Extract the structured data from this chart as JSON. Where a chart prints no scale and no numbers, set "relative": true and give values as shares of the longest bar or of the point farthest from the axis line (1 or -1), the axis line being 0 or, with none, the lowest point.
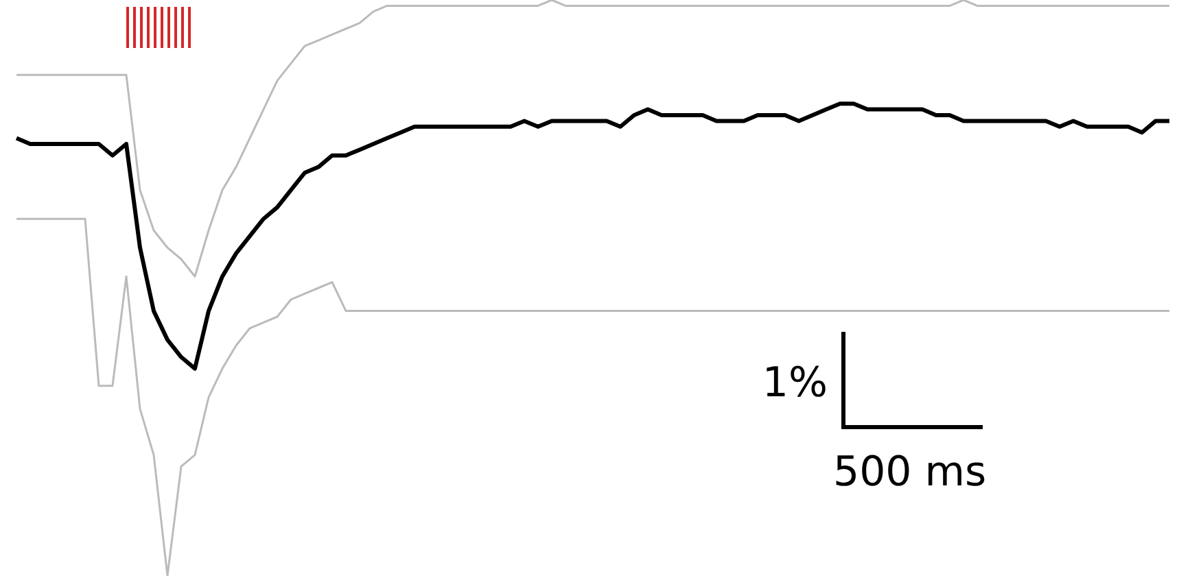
{
  "chart_data": {
    "type": "line",
    "relative": true,
    "categories": [
      null,
      null,
      null,
      null,
      null,
      null,
      null,
      null,
      null,
      null,
      null,
      null,
      null,
      null,
      null,
      null,
      null,
      null,
      null,
      null,
      null,
      null,
      null,
      null,
      null,
      null,
      null,
      null,
      null,
      null,
      null,
      null,
      null,
      null,
      null,
      null,
      null,
      null,
      null,
      null,
      null,
      null,
      null,
      null,
      null,
      null,
      null,
      null,
      null,
      null,
      null,
      null,
      null,
      null,
      null,
      null,
      null,
      null,
      null,
      null,
      null,
      null,
      null,
      null,
      null,
      null,
      null,
      null,
      null,
      null,
      null,
      null,
      null,
      null,
      null,
      null,
      null,
      null,
      null,
      null,
      null,
      null,
      null,
      null,
      null
    ],
    "series": [
      {
        "color": "#bbbbbb",
        "values": [
          0.87,
          0.87,
          0.87,
          0.87,
          0.87,
          0.87,
          0.87,
          0.87,
          0.87,
          0.67,
          0.6,
          0.57,
          0.55,
          0.52,
          0.6,
          0.67,
          0.71,
          0.76,
          0.81,
          0.86,
          0.89,
          0.92,
          0.93,
          0.94,
          0.95,
          0.96,
          0.98,
          0.99,
          0.99,
          0.99,
          0.99,
          0.99,
          0.99,
          0.99,
          0.99,
          0.99,
          0.99,
          0.99,
          0.99,
          1,
          0.99,
          0.99,
          0.99,
          0.99,
          0.99,
          0.99,
          0.99,
          0.99,
          0.99,
          0.99,
          0.99,
          0.99,
          0.99,
          0.99,
          0.99,
          0.99,
          0.99,
          0.99,
          0.99,
          0.99,
          0.99,
          0.99,
          0.99,
          0.99,
          0.99,
          0.99,
          0.99,
          0.99,
          0.99,
          1,
          0.99,
          0.99,
          0.99,
          0.99,
          0.99,
          0.99,
          0.99,
          0.99,
          0.99,
          0.99,
          0.99,
          0.99,
          0.99,
          0.99,
          0.99
        ]
      },
      {
        "color": "#bbbbbb",
        "values": [
          0.62,
          0.62,
          0.62,
          0.62,
          0.62,
          0.62,
          0.33,
          0.33,
          0.52,
          0.29,
          0.21,
          0,
          0.19,
          0.21,
          0.31,
          0.36,
          0.4,
          0.43,
          0.44,
          0.45,
          0.48,
          0.49,
          0.5,
          0.51,
          0.46,
          0.46,
          0.46,
          0.46,
          0.46,
          0.46,
          0.46,
          0.46,
          0.46,
          0.46,
          0.46,
          0.46,
          0.46,
          0.46,
          0.46,
          0.46,
          0.46,
          0.46,
          0.46,
          0.46,
          0.46,
          0.46,
          0.46,
          0.46,
          0.46,
          0.46,
          0.46,
          0.46,
          0.46,
          0.46,
          0.46,
          0.46,
          0.46,
          0.46,
          0.46,
          0.46,
          0.46,
          0.46,
          0.46,
          0.46,
          0.46,
          0.46,
          0.46,
          0.46,
          0.46,
          0.46,
          0.46,
          0.46,
          0.46,
          0.46,
          0.46,
          0.46,
          0.46,
          0.46,
          0.46,
          0.46,
          0.46,
          0.46,
          0.46,
          0.46,
          0.46
        ]
      },
      {
        "color": "#000000",
        "values": [
          0.76,
          0.75,
          0.75,
          0.75,
          0.75,
          0.75,
          0.75,
          0.73,
          0.75,
          0.57,
          0.46,
          0.41,
          0.38,
          0.36,
          0.46,
          0.52,
          0.56,
          0.59,
          0.62,
          0.64,
          0.67,
          0.7,
          0.71,
          0.73,
          0.73,
          0.74,
          0.75,
          0.76,
          0.77,
          0.78,
          0.78,
          0.78,
          0.78,
          0.78,
          0.78,
          0.78,
          0.78,
          0.79,
          0.78,
          0.79,
          0.79,
          0.79,
          0.79,
          0.79,
          0.78,
          0.8,
          0.81,
          0.8,
          0.8,
          0.8,
          0.8,
          0.79,
          0.79,
          0.79,
          0.8,
          0.8,
          0.8,
          0.79,
          0.8,
          0.81,
          0.82,
          0.82,
          0.81,
          0.81,
          0.81,
          0.81,
          0.81,
          0.8,
          0.8,
          0.79,
          0.79,
          0.79,
          0.79,
          0.79,
          0.79,
          0.79,
          0.78,
          0.79,
          0.78,
          0.78,
          0.78,
          0.78,
          0.77,
          0.79,
          0.79
        ]
      }
    ],
    "annotations": [
      "1%",
      "500 ms"
    ]
  }
}
